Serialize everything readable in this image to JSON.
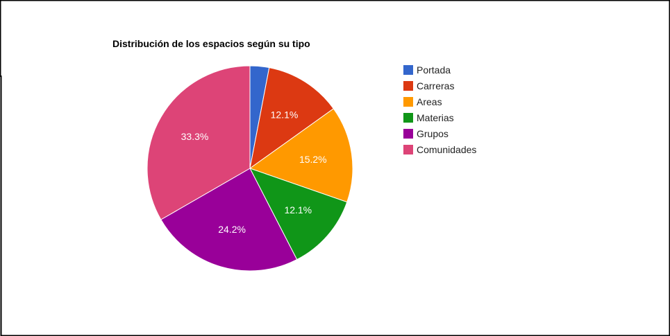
{
  "chart_data": {
    "type": "pie",
    "title": "Distribución de los espacios según su tipo",
    "legend_position": "right",
    "slices": [
      {
        "label": "Portada",
        "value": 3.0,
        "color": "#3366cc",
        "display": ""
      },
      {
        "label": "Carreras",
        "value": 12.1,
        "color": "#dc3912",
        "display": "12.1%"
      },
      {
        "label": "Areas",
        "value": 15.2,
        "color": "#ff9900",
        "display": "15.2%"
      },
      {
        "label": "Materias",
        "value": 12.1,
        "color": "#109618",
        "display": "12.1%"
      },
      {
        "label": "Grupos",
        "value": 24.2,
        "color": "#990099",
        "display": "24.2%"
      },
      {
        "label": "Comunidades",
        "value": 33.3,
        "color": "#dd4477",
        "display": "33.3%"
      }
    ]
  }
}
